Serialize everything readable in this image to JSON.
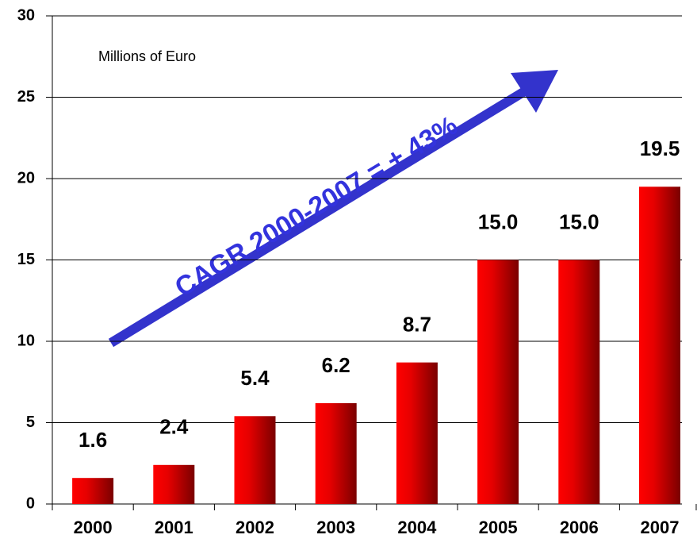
{
  "chart_data": {
    "type": "bar",
    "annotations": [
      "Millions of Euro",
      "CAGR 2000-2007 = + 43%"
    ],
    "categories": [
      "2000",
      "2001",
      "2002",
      "2003",
      "2004",
      "2005",
      "2006",
      "2007"
    ],
    "values": [
      1.6,
      2.4,
      5.4,
      6.2,
      8.7,
      15.0,
      15.0,
      19.5
    ],
    "value_labels": [
      "1.6",
      "2.4",
      "5.4",
      "6.2",
      "8.7",
      "15.0",
      "15.0",
      "19.5"
    ],
    "color": "#ff0000",
    "ylim": [
      0,
      30
    ],
    "yticks": [
      0,
      5,
      10,
      15,
      20,
      25,
      30
    ],
    "grid": true
  }
}
